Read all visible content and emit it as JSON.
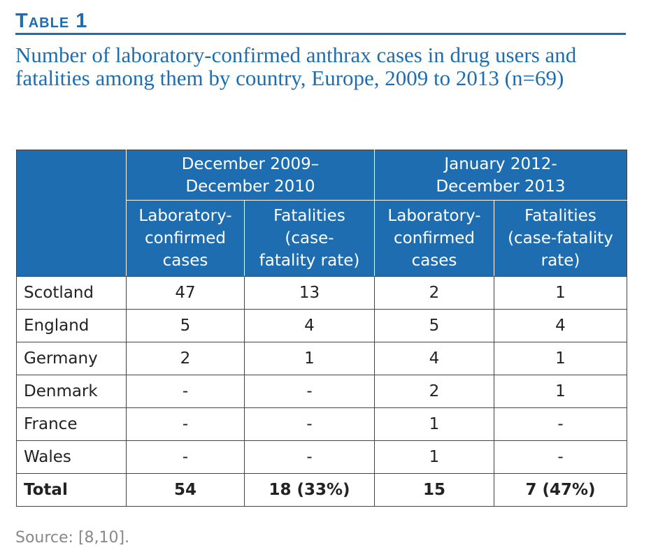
{
  "table_label": "Table 1",
  "caption": "Number of laboratory-confirmed anthrax cases in drug users and fatalities among them by country, Europe, 2009 to 2013 (n=69)",
  "periods": [
    {
      "line1": "December 2009–",
      "line2": "December 2010"
    },
    {
      "line1": "January 2012-",
      "line2": "December 2013"
    }
  ],
  "subheaders": [
    [
      "Laboratory-",
      "confirmed",
      "cases"
    ],
    [
      "Fatalities",
      "(case-",
      "fatality rate)"
    ],
    [
      "Laboratory-",
      "confirmed",
      "cases"
    ],
    [
      "Fatalities",
      "(case-fatality",
      "rate)"
    ]
  ],
  "rows": [
    [
      "Scotland",
      "47",
      "13",
      "2",
      "1"
    ],
    [
      "England",
      "5",
      "4",
      "5",
      "4"
    ],
    [
      "Germany",
      "2",
      "1",
      "4",
      "1"
    ],
    [
      "Denmark",
      "-",
      "-",
      "2",
      "1"
    ],
    [
      "France",
      "-",
      "-",
      "1",
      "-"
    ],
    [
      "Wales",
      "-",
      "-",
      "1",
      "-"
    ]
  ],
  "total": [
    "Total",
    "54",
    "18 (33%)",
    "15",
    "7 (47%)"
  ],
  "source": "Source: [8,10].",
  "colors": {
    "accent": "#1e6db0",
    "source_text": "#888888"
  }
}
